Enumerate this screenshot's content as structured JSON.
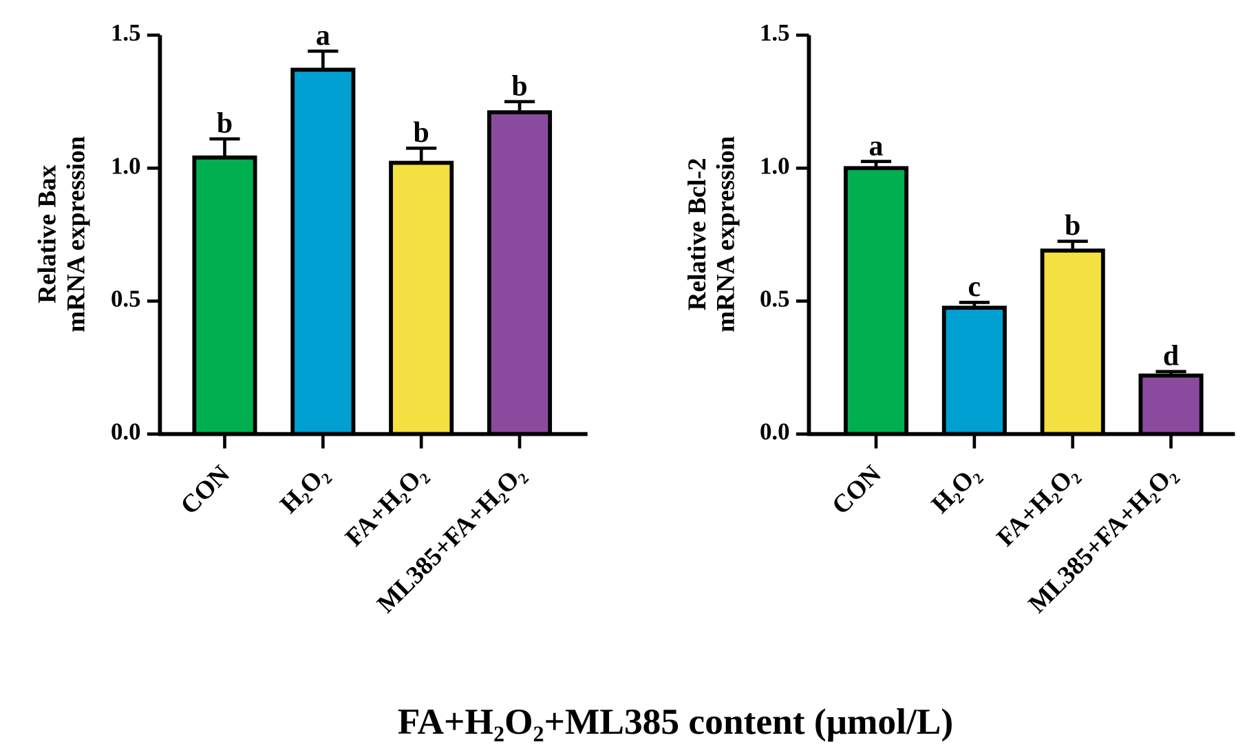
{
  "chart_data": [
    {
      "type": "bar",
      "ylabel": [
        "Relative Bax",
        "mRNA expression"
      ],
      "categories": [
        "CON",
        "H₂O₂",
        "FA+H₂O₂",
        "ML385+FA+H₂O₂"
      ],
      "values": [
        1.04,
        1.37,
        1.02,
        1.21
      ],
      "errors": [
        0.07,
        0.07,
        0.055,
        0.04
      ],
      "annotations": [
        "b",
        "a",
        "b",
        "b"
      ],
      "colors": [
        "#00b050",
        "#00a0d2",
        "#f5e042",
        "#8a4b9e"
      ],
      "ylim": [
        0,
        1.5
      ],
      "yticks": [
        {
          "value": 0,
          "label": "0.0"
        },
        {
          "value": 0.5,
          "label": "0.5"
        },
        {
          "value": 1,
          "label": "1.0"
        },
        {
          "value": 1.5,
          "label": "1.5"
        }
      ]
    },
    {
      "type": "bar",
      "ylabel": [
        "Relative Bcl-2",
        "mRNA expression"
      ],
      "categories": [
        "CON",
        "H₂O₂",
        "FA+H₂O₂",
        "ML385+FA+H₂O₂"
      ],
      "values": [
        1.0,
        0.475,
        0.69,
        0.22
      ],
      "errors": [
        0.025,
        0.02,
        0.035,
        0.015
      ],
      "annotations": [
        "a",
        "c",
        "b",
        "d"
      ],
      "colors": [
        "#00b050",
        "#00a0d2",
        "#f5e042",
        "#8a4b9e"
      ],
      "ylim": [
        0,
        1.5
      ],
      "yticks": [
        {
          "value": 0,
          "label": "0.0"
        },
        {
          "value": 0.5,
          "label": "0.5"
        },
        {
          "value": 1,
          "label": "1.0"
        },
        {
          "value": 1.5,
          "label": "1.5"
        }
      ]
    }
  ],
  "xlabel": "FA+H₂O₂+ML385 content (μmol/L)"
}
